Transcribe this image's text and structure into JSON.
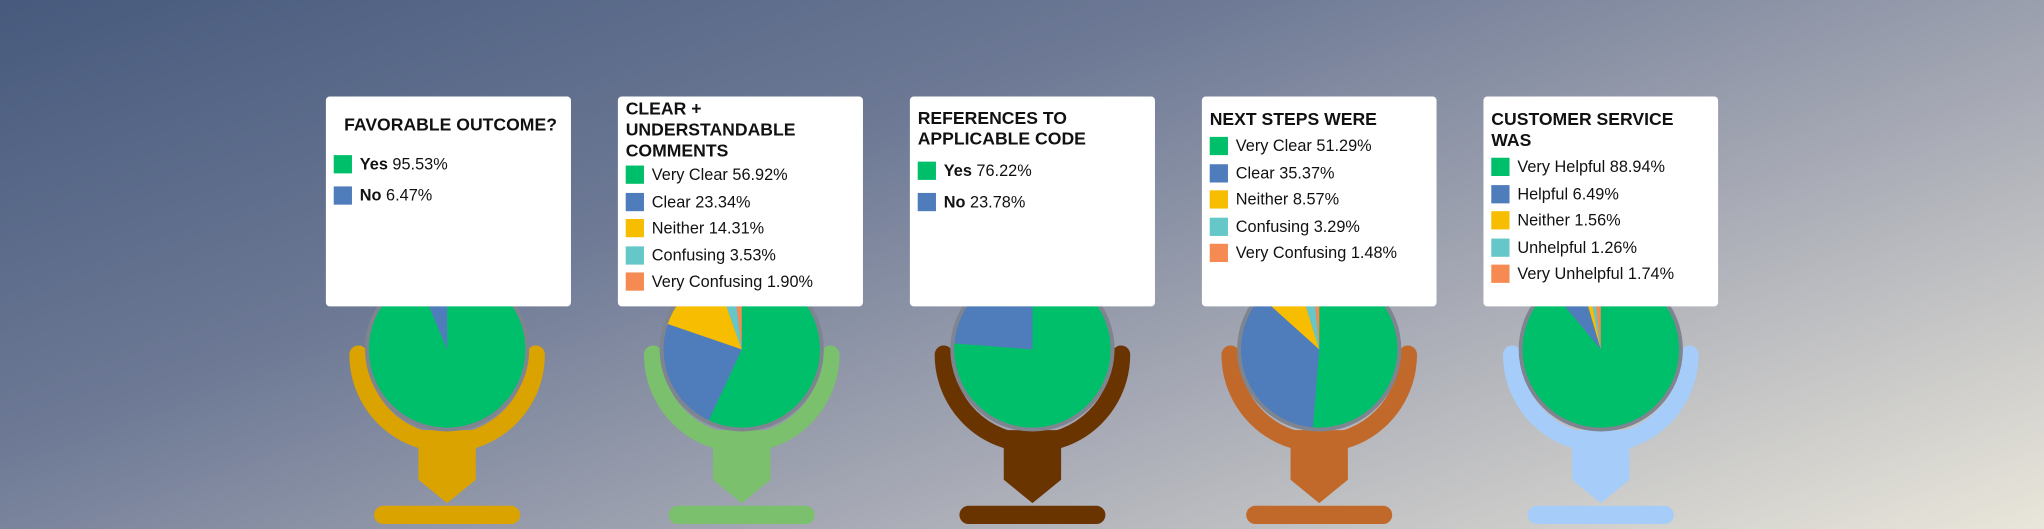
{
  "chart_data": [
    {
      "type": "pie",
      "title": "FAVORABLE OUTCOME?",
      "categories": [
        "Yes",
        "No"
      ],
      "values": [
        95.53,
        6.47
      ],
      "value_labels": [
        "95.53%",
        "6.47%"
      ],
      "colors": [
        "#00bf6a",
        "#4f7cba"
      ]
    },
    {
      "type": "pie",
      "title": "CLEAR + UNDERSTANDABLE COMMENTS",
      "categories": [
        "Very Clear",
        "Clear",
        "Neither ",
        "Confusing",
        "Very Confusing"
      ],
      "values": [
        56.92,
        23.34,
        14.31,
        3.53,
        1.9
      ],
      "value_labels": [
        "56.92%",
        "23.34%",
        "14.31%",
        "3.53%",
        "1.90%"
      ],
      "colors": [
        "#00bf6a",
        "#4f7cba",
        "#f7bd00",
        "#66c7c9",
        "#f58b52"
      ]
    },
    {
      "type": "pie",
      "title": "REFERENCES TO APPLICABLE CODE",
      "categories": [
        "Yes",
        "No"
      ],
      "values": [
        76.22,
        23.78
      ],
      "value_labels": [
        "76.22%",
        "23.78%"
      ],
      "colors": [
        "#00bf6a",
        "#4f7cba"
      ]
    },
    {
      "type": "pie",
      "title": "NEXT STEPS WERE",
      "categories": [
        "Very Clear",
        "Clear",
        "Neither",
        "Confusing",
        "Very Confusing"
      ],
      "values": [
        51.29,
        35.37,
        8.57,
        3.29,
        1.48
      ],
      "value_labels": [
        "51.29%",
        "35.37%",
        "8.57%",
        "3.29%",
        "1.48%"
      ],
      "colors": [
        "#00bf6a",
        "#4f7cba",
        "#f7bd00",
        "#66c7c9",
        "#f58b52"
      ]
    },
    {
      "type": "pie",
      "title": "CUSTOMER SERVICE WAS",
      "categories": [
        "Very Helpful",
        "Helpful",
        "Neither",
        "Unhelpful",
        "Very Unhelpful"
      ],
      "values": [
        88.94,
        6.49,
        1.56,
        1.26,
        1.74
      ],
      "value_labels": [
        "88.94%",
        "6.49%",
        "1.56%",
        "1.26%",
        "1.74%"
      ],
      "colors": [
        "#00bf6a",
        "#4f7cba",
        "#f7bd00",
        "#66c7c9",
        "#f58b52"
      ]
    }
  ]
}
